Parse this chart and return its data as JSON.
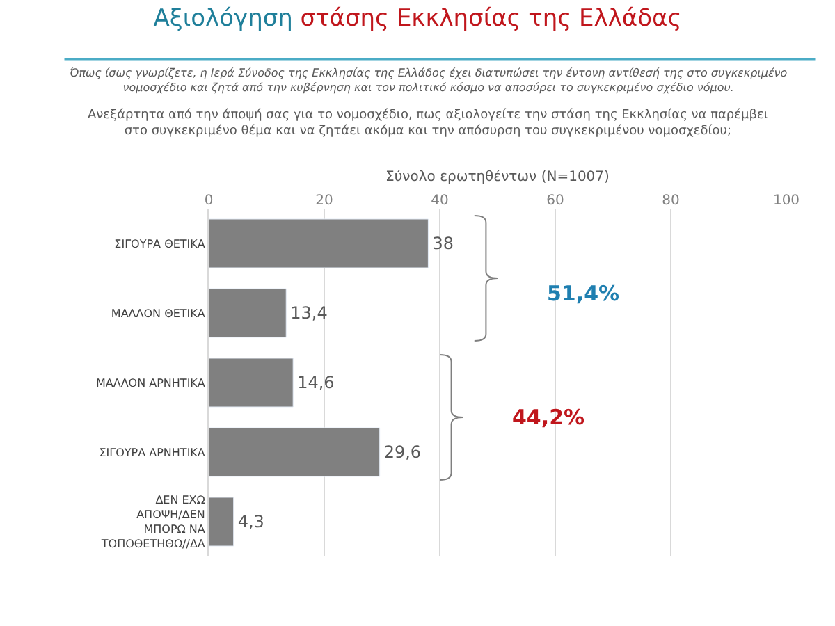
{
  "chart_data": {
    "type": "bar",
    "orientation": "horizontal",
    "title": "Αξιολόγηση στάσης Εκκλησίας της Ελλάδας",
    "subtitle": "Όπως ίσως γνωρίζετε, η Ιερά Σύνοδος της Εκκλησίας της Ελλάδος έχει διατυπώσει την έντονη αντίθεσή της στο συγκεκριμένο νομοσχέδιο και ζητά από την κυβέρνηση και τον πολιτικό κόσμο να αποσύρει το συγκεκριμένο σχέδιο νόμου.",
    "xlabel": "Σύνολο ερωτηθέντων (N=1007)",
    "annotations": [
      "Ανεξάρτητα από την άποψή σας για το νομοσχέδιο, πως αξιολογείτε την στάση της Εκκλησίας να παρέμβει στο συγκεκριμένο θέμα και να ζητάει ακόμα και την απόσυρση του συγκεκριμένου νομοσχεδίου;",
      "51,4%",
      "44,2%"
    ],
    "categories": [
      "ΣΙΓΟΥΡΑ ΘΕΤΙΚΑ",
      "ΜΑΛΛΟΝ ΘΕΤΙΚΑ",
      "ΜΑΛΛΟΝ ΑΡΝΗΤΙΚΑ",
      "ΣΙΓΟΥΡΑ ΑΡΝΗΤΙΚΑ",
      "ΔΕΝ ΕΧΩ ΑΠΟΨΗ/ΔΕΝ ΜΠΟΡΩ ΝΑ ΤΟΠΟΘΕΤΗΘΩ//ΔΑ"
    ],
    "values": [
      38,
      13.4,
      14.6,
      29.6,
      4.3
    ],
    "value_labels": [
      "38",
      "13,4",
      "14,6",
      "29,6",
      "4,3"
    ],
    "color": "#808080",
    "xlim": [
      0,
      100
    ],
    "xticks": [
      0,
      20,
      40,
      60,
      80,
      100
    ],
    "grid": "x",
    "legend": false
  }
}
